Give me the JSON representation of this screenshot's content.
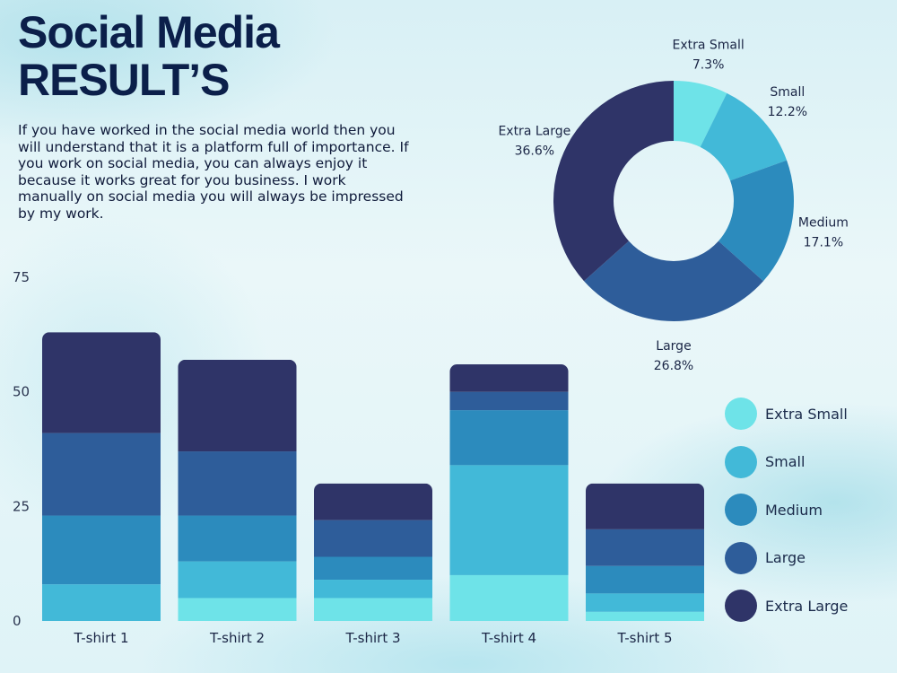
{
  "title_line1": "Social Media",
  "title_line2": "RESULT’S",
  "description": "If you have worked in the social media world then you will understand that it is a platform full of importance. If you work on social media, you can always enjoy it because it works great for you business. I work manually on social media you will always be impressed by my work.",
  "colors": {
    "Extra Small": "#6ee3e8",
    "Small": "#42b9d8",
    "Medium": "#2c8bbd",
    "Large": "#2e5d9a",
    "Extra Large": "#2f3468"
  },
  "chart_data": [
    {
      "type": "pie",
      "variant": "donut",
      "labels": [
        "Extra Small",
        "Small",
        "Medium",
        "Large",
        "Extra Large"
      ],
      "values": [
        7.3,
        12.2,
        17.1,
        26.8,
        36.6
      ],
      "value_labels": [
        "7.3%",
        "12.2%",
        "17.1%",
        "26.8%",
        "36.6%"
      ]
    },
    {
      "type": "bar",
      "stacked": true,
      "categories": [
        "T-shirt 1",
        "T-shirt 2",
        "T-shirt 3",
        "T-shirt 4",
        "T-shirt 5"
      ],
      "series": [
        {
          "name": "Extra Small",
          "values": [
            0,
            5,
            5,
            10,
            2
          ]
        },
        {
          "name": "Small",
          "values": [
            8,
            8,
            4,
            24,
            4
          ]
        },
        {
          "name": "Medium",
          "values": [
            15,
            10,
            5,
            12,
            6
          ]
        },
        {
          "name": "Large",
          "values": [
            18,
            14,
            8,
            4,
            8
          ]
        },
        {
          "name": "Extra Large",
          "values": [
            22,
            20,
            8,
            6,
            10
          ]
        }
      ],
      "ylim": [
        0,
        75
      ],
      "yticks": [
        "0",
        "25",
        "50",
        "75"
      ],
      "legend": "right"
    }
  ]
}
